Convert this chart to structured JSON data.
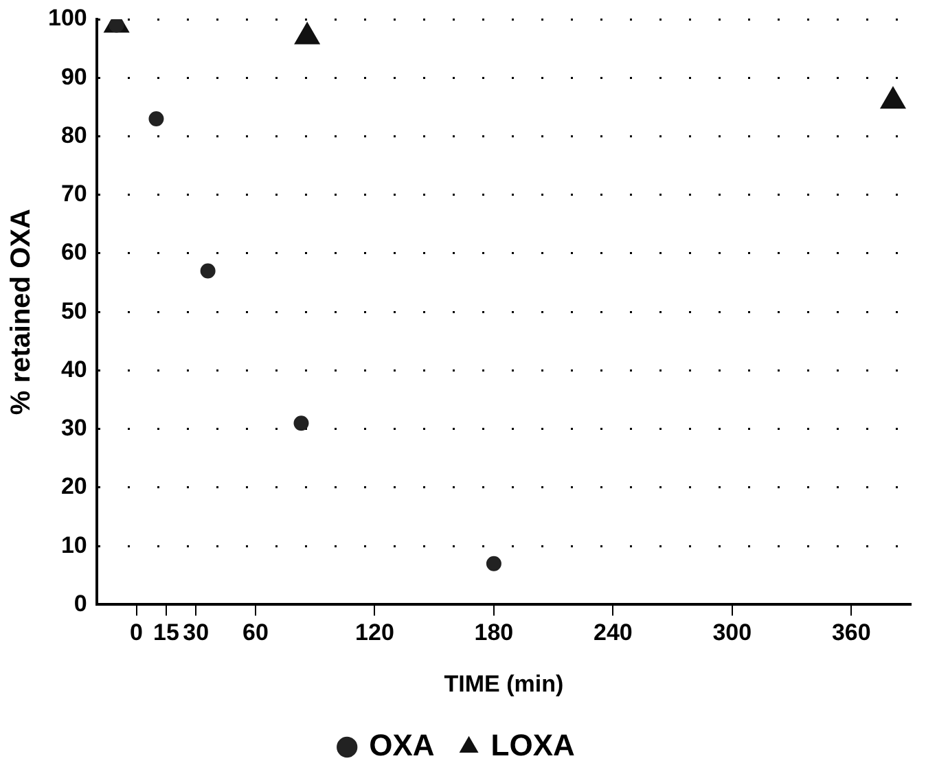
{
  "chart_data": {
    "type": "scatter",
    "xlabel": "TIME (min)",
    "ylabel": "% retained OXA",
    "xlim": [
      -20,
      390
    ],
    "xticks": [
      0,
      15,
      30,
      60,
      120,
      180,
      240,
      300,
      360
    ],
    "ylim": [
      0,
      100
    ],
    "yticks": [
      0,
      10,
      20,
      30,
      40,
      50,
      60,
      70,
      80,
      90,
      100
    ],
    "grid": "y",
    "legend": "bottom",
    "series": [
      {
        "name": "OXA",
        "color": "#222222",
        "marker": "circle",
        "x": [
          -10,
          10,
          36,
          83,
          180
        ],
        "values": [
          99,
          83,
          57,
          31,
          7
        ]
      },
      {
        "name": "LOXA",
        "color": "#111111",
        "marker": "triangle",
        "x": [
          -10,
          86,
          381
        ],
        "values": [
          99,
          97,
          86
        ]
      }
    ]
  }
}
